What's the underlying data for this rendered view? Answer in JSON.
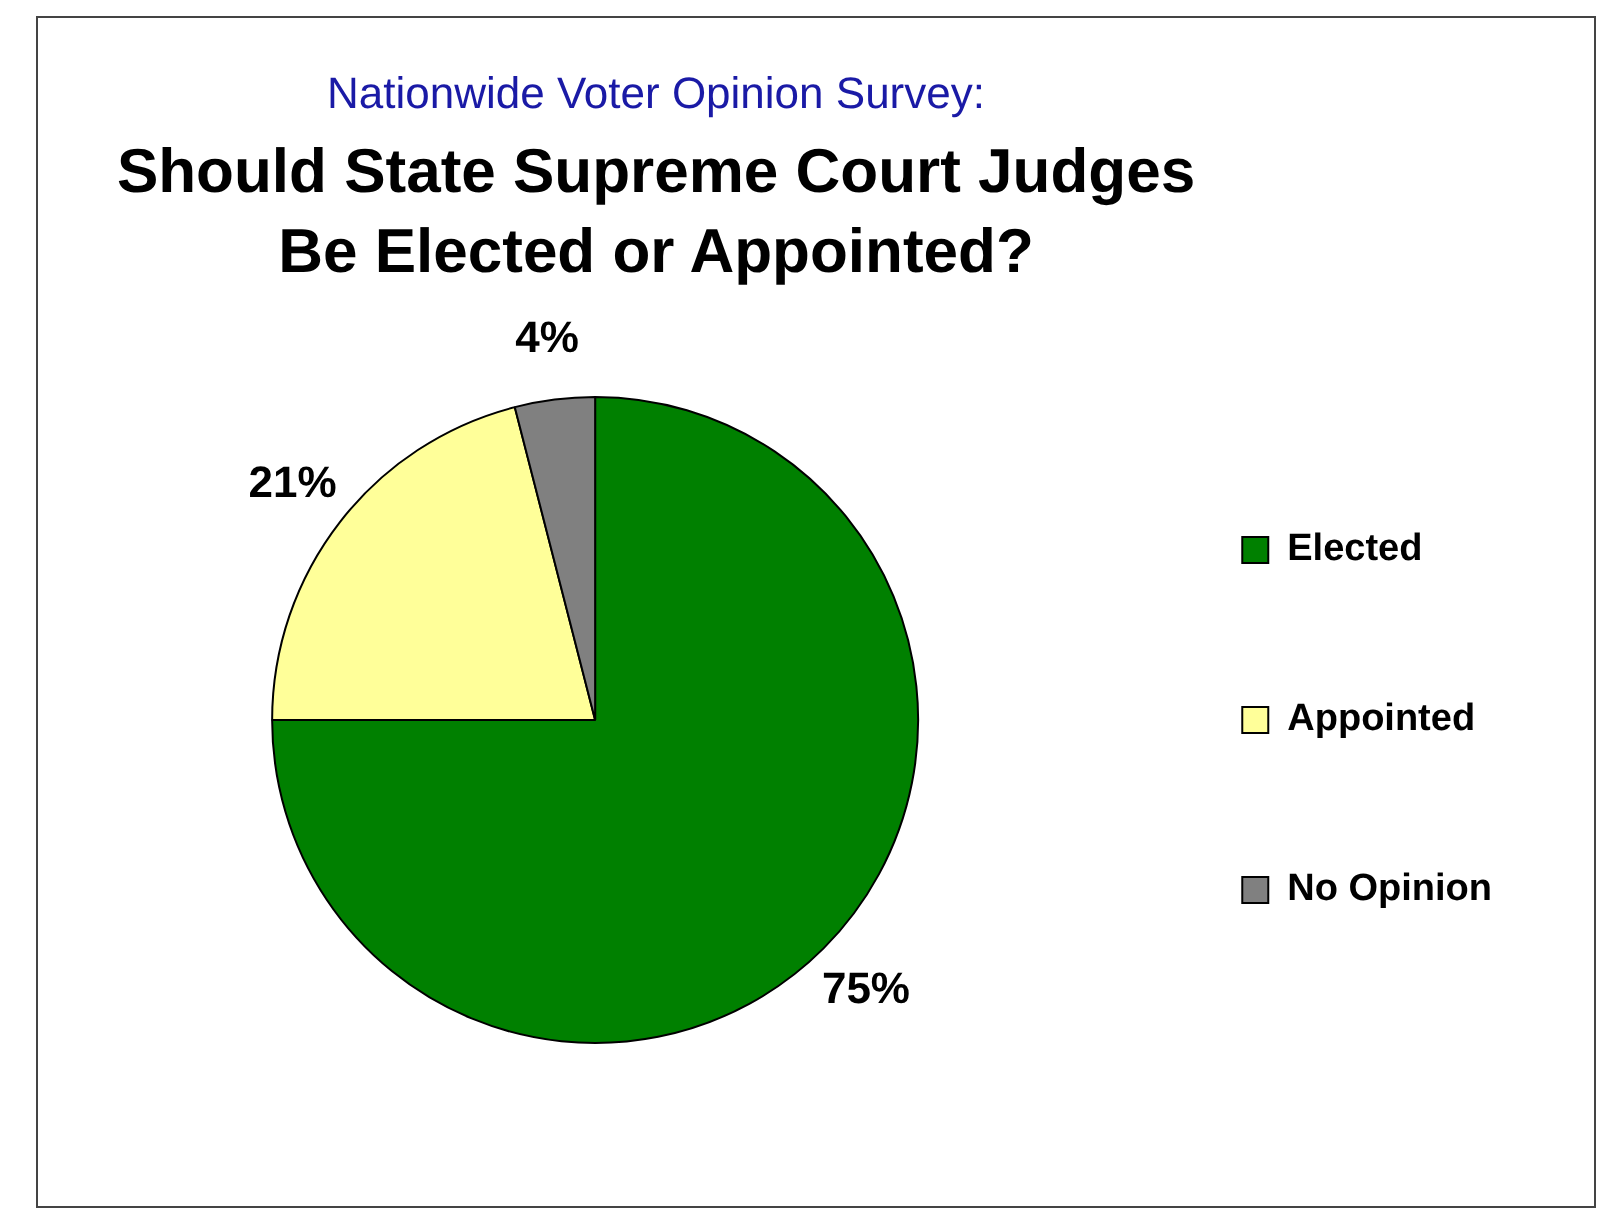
{
  "chart_data": {
    "type": "pie",
    "subtitle": "Nationwide Voter Opinion Survey:",
    "title": "Should State Supreme Court Judges\nBe Elected or Appointed?",
    "categories": [
      "Elected",
      "Appointed",
      "No Opinion"
    ],
    "values": [
      75,
      21,
      4
    ],
    "colors": [
      "#008000",
      "#ffff99",
      "#808080"
    ],
    "value_labels": [
      "75%",
      "21%",
      "4%"
    ],
    "legend": "right"
  }
}
